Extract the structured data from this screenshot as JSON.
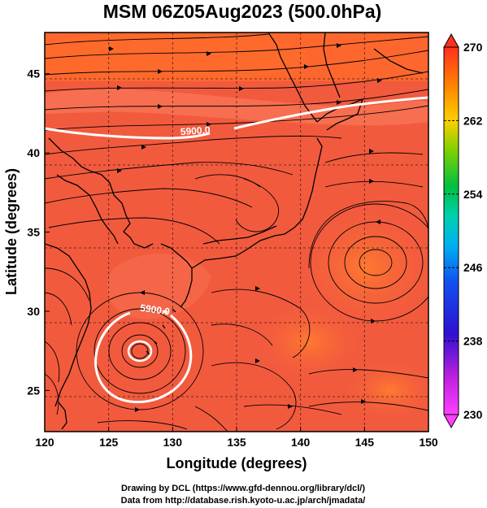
{
  "title": "MSM 06Z05Aug2023 (500.0hPa)",
  "xlabel": "Longitude (degrees)",
  "ylabel": "Latitude  (degrees)",
  "xticks": [
    120,
    125,
    130,
    135,
    140,
    145,
    150
  ],
  "yticks": [
    25,
    30,
    35,
    40,
    45
  ],
  "xlim": [
    120,
    150
  ],
  "ylim": [
    22.4,
    47.6
  ],
  "colorbar": {
    "min": 230,
    "max": 270,
    "labels": [
      270,
      262,
      254,
      246,
      238,
      230
    ],
    "colors": [
      "#ff40ff",
      "#c020e0",
      "#6000d0",
      "#1030e0",
      "#00a0f0",
      "#00d0c0",
      "#00c060",
      "#40c000",
      "#c0d000",
      "#ffc000",
      "#ff8000",
      "#ff4020"
    ]
  },
  "contours": [
    {
      "label": "5900.0"
    },
    {
      "label": "5900.0"
    }
  ],
  "credits": {
    "line1": "Drawing by DCL (https://www.gfd-dennou.org/library/dcl/)",
    "line2": "Data from http://database.rish.kyoto-u.ac.jp/arch/jmadata/"
  },
  "colors": {
    "field_base": "#f25a3e",
    "field_warm": "#ff6a2a",
    "field_light": "#ff8866",
    "contour": "#ffffff",
    "coast": "#000000"
  }
}
